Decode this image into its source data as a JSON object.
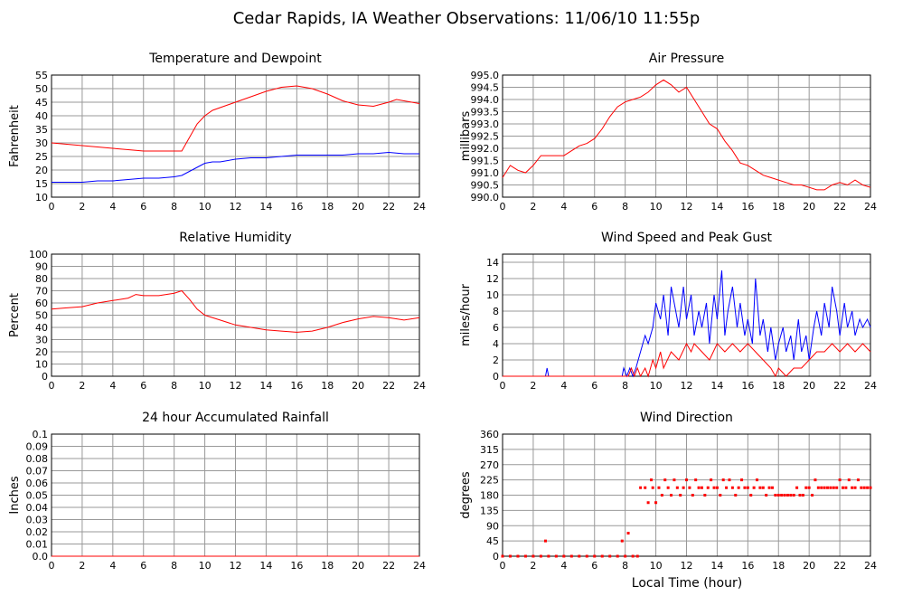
{
  "title": "Cedar Rapids, IA Weather Observations: 11/06/10 11:55p",
  "xaxis_label": "Local Time (hour)",
  "colors": {
    "primary": "#ff0000",
    "secondary": "#0000ff",
    "grid": "#999999"
  },
  "chart_data": [
    {
      "type": "line",
      "title": "Temperature and Dewpoint",
      "xlabel": "",
      "ylabel": "Fahrenheit",
      "xlim": [
        0,
        24
      ],
      "ylim": [
        10,
        55
      ],
      "xticks": [
        0,
        2,
        4,
        6,
        8,
        10,
        12,
        14,
        16,
        18,
        20,
        22,
        24
      ],
      "yticks": [
        10,
        15,
        20,
        25,
        30,
        35,
        40,
        45,
        50,
        55
      ],
      "grid": true,
      "series": [
        {
          "color": "#ff0000",
          "x": [
            0,
            1,
            2,
            3,
            4,
            5,
            6,
            7,
            8,
            8.5,
            9,
            9.5,
            10,
            10.5,
            11,
            12,
            13,
            14,
            15,
            16,
            17,
            18,
            19,
            20,
            21,
            22,
            22.5,
            23,
            24
          ],
          "y": [
            30,
            29.5,
            29,
            28.5,
            28,
            27.5,
            27,
            27,
            27,
            27,
            32,
            37,
            40,
            42,
            43,
            45,
            47,
            49,
            50.5,
            51,
            50,
            48,
            45.5,
            44,
            43.5,
            45,
            46,
            45.5,
            44.5
          ]
        },
        {
          "color": "#0000ff",
          "x": [
            0,
            1,
            2,
            3,
            4,
            5,
            6,
            7,
            8,
            8.5,
            9,
            9.5,
            10,
            10.5,
            11,
            12,
            13,
            14,
            15,
            16,
            17,
            18,
            19,
            20,
            21,
            22,
            23,
            24
          ],
          "y": [
            15.5,
            15.5,
            15.5,
            16,
            16,
            16.5,
            17,
            17,
            17.5,
            18,
            19.5,
            21,
            22.5,
            23,
            23,
            24,
            24.5,
            24.5,
            25,
            25.5,
            25.5,
            25.5,
            25.5,
            26,
            26,
            26.5,
            26,
            26
          ]
        }
      ]
    },
    {
      "type": "line",
      "title": "Air Pressure",
      "xlabel": "",
      "ylabel": "millibars",
      "xlim": [
        0,
        24
      ],
      "ylim": [
        990,
        995
      ],
      "xticks": [
        0,
        2,
        4,
        6,
        8,
        10,
        12,
        14,
        16,
        18,
        20,
        22,
        24
      ],
      "yticks": [
        990.0,
        990.5,
        991.0,
        991.5,
        992.0,
        992.5,
        993.0,
        993.5,
        994.0,
        994.5,
        995.0
      ],
      "ytick_labels": [
        "990.0",
        "990.5",
        "991.0",
        "991.5",
        "992.0",
        "992.5",
        "993.0",
        "993.5",
        "994.0",
        "994.5",
        "995.0"
      ],
      "grid": true,
      "series": [
        {
          "color": "#ff0000",
          "x": [
            0,
            0.5,
            1,
            1.5,
            2,
            2.5,
            3,
            3.5,
            4,
            4.5,
            5,
            5.5,
            6,
            6.5,
            7,
            7.5,
            8,
            8.5,
            9,
            9.5,
            10,
            10.5,
            11,
            11.5,
            12,
            12.5,
            13,
            13.5,
            14,
            14.5,
            15,
            15.5,
            16,
            16.5,
            17,
            17.5,
            18,
            18.5,
            19,
            19.5,
            20,
            20.5,
            21,
            21.5,
            22,
            22.5,
            23,
            23.5,
            24
          ],
          "y": [
            990.8,
            991.3,
            991.1,
            991.0,
            991.3,
            991.7,
            991.7,
            991.7,
            991.7,
            991.9,
            992.1,
            992.2,
            992.4,
            992.8,
            993.3,
            993.7,
            993.9,
            994.0,
            994.1,
            994.3,
            994.6,
            994.8,
            994.6,
            994.3,
            994.5,
            994.0,
            993.5,
            993.0,
            992.8,
            992.3,
            991.9,
            991.4,
            991.3,
            991.1,
            990.9,
            990.8,
            990.7,
            990.6,
            990.5,
            990.5,
            990.4,
            990.3,
            990.3,
            990.5,
            990.6,
            990.5,
            990.7,
            990.5,
            990.4
          ]
        }
      ]
    },
    {
      "type": "line",
      "title": "Relative Humidity",
      "xlabel": "",
      "ylabel": "Percent",
      "xlim": [
        0,
        24
      ],
      "ylim": [
        0,
        100
      ],
      "xticks": [
        0,
        2,
        4,
        6,
        8,
        10,
        12,
        14,
        16,
        18,
        20,
        22,
        24
      ],
      "yticks": [
        0,
        10,
        20,
        30,
        40,
        50,
        60,
        70,
        80,
        90,
        100
      ],
      "grid": true,
      "series": [
        {
          "color": "#ff0000",
          "x": [
            0,
            1,
            2,
            3,
            4,
            5,
            5.5,
            6,
            7,
            8,
            8.5,
            9,
            9.5,
            10,
            11,
            12,
            13,
            14,
            15,
            16,
            17,
            18,
            19,
            20,
            21,
            22,
            23,
            24
          ],
          "y": [
            55,
            56,
            57,
            60,
            62,
            64,
            67,
            66,
            66,
            68,
            70,
            63,
            55,
            50,
            46,
            42,
            40,
            38,
            37,
            36,
            37,
            40,
            44,
            47,
            49,
            48,
            46,
            48
          ]
        }
      ]
    },
    {
      "type": "line",
      "title": "Wind Speed and Peak Gust",
      "xlabel": "",
      "ylabel": "miles/hour",
      "xlim": [
        0,
        24
      ],
      "ylim": [
        0,
        15
      ],
      "xticks": [
        0,
        2,
        4,
        6,
        8,
        10,
        12,
        14,
        16,
        18,
        20,
        22,
        24
      ],
      "yticks": [
        0,
        2,
        4,
        6,
        8,
        10,
        12,
        14
      ],
      "grid": true,
      "series": [
        {
          "color": "#0000ff",
          "x": [
            0,
            2.8,
            2.9,
            3,
            3.1,
            7.8,
            7.9,
            8.1,
            8.3,
            8.5,
            8.7,
            9,
            9.3,
            9.5,
            9.8,
            10,
            10.3,
            10.5,
            10.8,
            11,
            11.3,
            11.5,
            11.8,
            12,
            12.3,
            12.5,
            12.8,
            13,
            13.3,
            13.5,
            13.8,
            14,
            14.3,
            14.5,
            14.7,
            15,
            15.3,
            15.5,
            15.8,
            16,
            16.3,
            16.5,
            16.8,
            17,
            17.3,
            17.5,
            17.8,
            18,
            18.3,
            18.5,
            18.8,
            19,
            19.3,
            19.5,
            19.8,
            20,
            20.3,
            20.5,
            20.8,
            21,
            21.3,
            21.5,
            21.8,
            22,
            22.3,
            22.5,
            22.8,
            23,
            23.3,
            23.5,
            23.8,
            24
          ],
          "y": [
            0,
            0,
            1,
            0,
            0,
            0,
            1,
            0,
            1,
            0,
            1,
            3,
            5,
            4,
            6,
            9,
            7,
            10,
            5,
            11,
            8,
            6,
            11,
            7,
            10,
            5,
            8,
            6,
            9,
            4,
            10,
            7,
            13,
            5,
            8,
            11,
            6,
            9,
            5,
            7,
            4,
            12,
            5,
            7,
            3,
            6,
            2,
            4,
            6,
            3,
            5,
            2,
            7,
            3,
            5,
            2,
            6,
            8,
            5,
            9,
            6,
            11,
            8,
            5,
            9,
            6,
            8,
            5,
            7,
            6,
            7,
            6
          ]
        },
        {
          "color": "#ff0000",
          "x": [
            0,
            8.2,
            8.4,
            8.6,
            8.8,
            9,
            9.3,
            9.5,
            9.8,
            10,
            10.3,
            10.5,
            11,
            11.5,
            12,
            12.3,
            12.5,
            13,
            13.5,
            14,
            14.5,
            15,
            15.5,
            16,
            16.5,
            17,
            17.5,
            17.8,
            18,
            18.5,
            19,
            19.5,
            20,
            20.5,
            21,
            21.5,
            22,
            22.5,
            23,
            23.5,
            24
          ],
          "y": [
            0,
            0,
            1,
            0,
            1,
            0,
            1,
            0,
            2,
            1,
            3,
            1,
            3,
            2,
            4,
            3,
            4,
            3,
            2,
            4,
            3,
            4,
            3,
            4,
            3,
            2,
            1,
            0,
            1,
            0,
            1,
            1,
            2,
            3,
            3,
            4,
            3,
            4,
            3,
            4,
            3
          ]
        }
      ]
    },
    {
      "type": "line",
      "title": "24 hour Accumulated Rainfall",
      "xlabel": "",
      "ylabel": "Inches",
      "xlim": [
        0,
        24
      ],
      "ylim": [
        0,
        0.1
      ],
      "xticks": [
        0,
        2,
        4,
        6,
        8,
        10,
        12,
        14,
        16,
        18,
        20,
        22,
        24
      ],
      "yticks": [
        0,
        0.01,
        0.02,
        0.03,
        0.04,
        0.05,
        0.06,
        0.07,
        0.08,
        0.09,
        0.1
      ],
      "ytick_labels": [
        "0.0",
        "0.01",
        "0.02",
        "0.03",
        "0.04",
        "0.05",
        "0.06",
        "0.07",
        "0.08",
        "0.09",
        "0.1"
      ],
      "grid": true,
      "series": [
        {
          "color": "#ff0000",
          "x": [
            0,
            24
          ],
          "y": [
            0,
            0
          ]
        }
      ]
    },
    {
      "type": "scatter",
      "title": "Wind Direction",
      "xlabel": "Local Time (hour)",
      "ylabel": "degrees",
      "xlim": [
        0,
        24
      ],
      "ylim": [
        0,
        360
      ],
      "xticks": [
        0,
        2,
        4,
        6,
        8,
        10,
        12,
        14,
        16,
        18,
        20,
        22,
        24
      ],
      "yticks": [
        0,
        45,
        90,
        135,
        180,
        225,
        270,
        315,
        360
      ],
      "grid": true,
      "series": [
        {
          "color": "#ff0000",
          "x": [
            0,
            0.5,
            1,
            1.5,
            2,
            2.5,
            2.8,
            3,
            3.5,
            4,
            4.5,
            5,
            5.5,
            6,
            6.5,
            7,
            7.5,
            7.8,
            8,
            8.2,
            8.5,
            8.8,
            9,
            9.3,
            9.5,
            9.7,
            9.8,
            10,
            10.2,
            10.4,
            10.6,
            10.8,
            11,
            11.2,
            11.4,
            11.6,
            11.8,
            12,
            12.2,
            12.4,
            12.6,
            12.8,
            13,
            13.2,
            13.4,
            13.6,
            13.8,
            14,
            14.2,
            14.4,
            14.6,
            14.8,
            15,
            15.2,
            15.4,
            15.6,
            15.8,
            16,
            16.2,
            16.4,
            16.6,
            16.8,
            17,
            17.2,
            17.4,
            17.6,
            17.8,
            18,
            18.2,
            18.4,
            18.6,
            18.8,
            19,
            19.2,
            19.4,
            19.6,
            19.8,
            20,
            20.2,
            20.4,
            20.6,
            20.8,
            21,
            21.2,
            21.4,
            21.6,
            21.8,
            22,
            22.2,
            22.4,
            22.6,
            22.8,
            23,
            23.2,
            23.4,
            23.6,
            23.8,
            24
          ],
          "y": [
            0,
            0,
            0,
            0,
            0,
            0,
            45,
            0,
            0,
            0,
            0,
            0,
            0,
            0,
            0,
            0,
            0,
            45,
            0,
            68,
            0,
            0,
            202,
            202,
            158,
            225,
            202,
            158,
            202,
            180,
            225,
            202,
            180,
            225,
            202,
            180,
            202,
            225,
            202,
            180,
            225,
            202,
            202,
            180,
            202,
            225,
            202,
            202,
            180,
            225,
            202,
            225,
            202,
            180,
            202,
            225,
            202,
            202,
            180,
            202,
            225,
            202,
            202,
            180,
            202,
            202,
            180,
            180,
            180,
            180,
            180,
            180,
            180,
            202,
            180,
            180,
            202,
            202,
            180,
            225,
            202,
            202,
            202,
            202,
            202,
            202,
            202,
            225,
            202,
            202,
            225,
            202,
            202,
            225,
            202,
            202,
            202,
            202
          ]
        }
      ]
    }
  ]
}
